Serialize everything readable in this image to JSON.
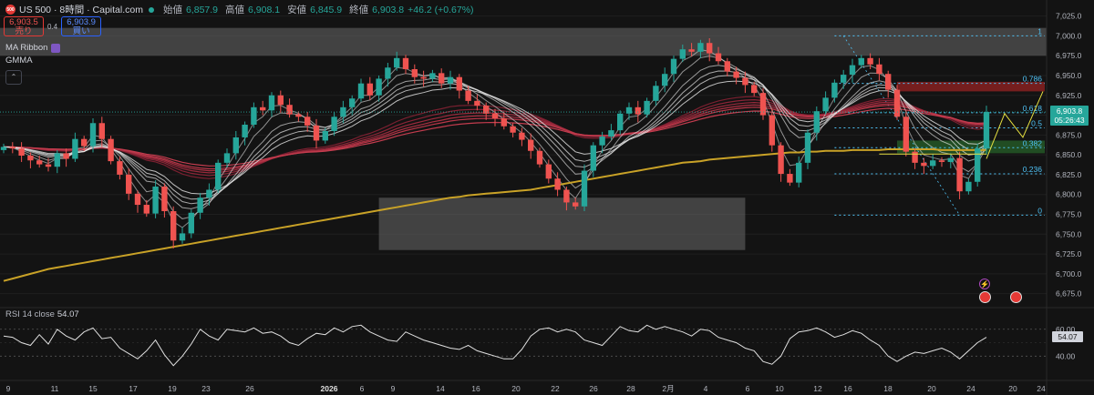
{
  "header": {
    "symbol": "US 500 · 8時間 · Capital.com",
    "logo": "500",
    "open_label": "始値",
    "open": "6,857.9",
    "high_label": "高値",
    "high": "6,908.1",
    "low_label": "安値",
    "low": "6,845.9",
    "close_label": "終値",
    "close": "6,903.8",
    "change": "+46.2 (+0.67%)"
  },
  "trade": {
    "sell_price": "6,903.5",
    "sell_label": "売り",
    "spread": "0.4",
    "buy_price": "6,903.9",
    "buy_label": "買い"
  },
  "indicators": {
    "ma_ribbon": "MA Ribbon",
    "gmma": "GMMA",
    "collapse_icon": "chevron-up-icon"
  },
  "price_badge": {
    "price": "6,903.8",
    "countdown": "05:26:43"
  },
  "rsi": {
    "label": "RSI 14 close",
    "value": "54.07",
    "levels": [
      "60.00",
      "40.00"
    ],
    "badge": "54.07"
  },
  "events": [
    "flash-icon",
    "us-flag-icon",
    "us-flag-icon"
  ],
  "colors": {
    "up": "#26a69a",
    "down": "#ef5350",
    "ma200": "#c9a227",
    "fib": "#4fc3f7",
    "grid": "#1f1f1f"
  },
  "chart_data": {
    "type": "candlestick",
    "symbol": "US 500",
    "timeframe": "8時間",
    "y_ticks": [
      "7,025.0",
      "7,000.0",
      "6,975.0",
      "6,950.0",
      "6,925.0",
      "6,900.0",
      "6,875.0",
      "6,850.0",
      "6,825.0",
      "6,800.0",
      "6,775.0",
      "6,750.0",
      "6,725.0",
      "6,700.0",
      "6,675.0"
    ],
    "ylim": [
      6662,
      7036
    ],
    "x_ticks": [
      "9",
      "11",
      "15",
      "17",
      "19",
      "23",
      "26",
      "2026",
      "6",
      "9",
      "14",
      "16",
      "20",
      "22",
      "26",
      "28",
      "2月",
      "4",
      "6",
      "10",
      "12",
      "16",
      "18",
      "20",
      "24"
    ],
    "fib_levels": [
      {
        "label": "1",
        "price": 7000
      },
      {
        "label": "0.786",
        "price": 6940
      },
      {
        "label": "0.618",
        "price": 6903
      },
      {
        "label": "0.5",
        "price": 6884
      },
      {
        "label": "0.382",
        "price": 6859
      },
      {
        "label": "0.236",
        "price": 6826
      },
      {
        "label": "0",
        "price": 6774
      }
    ],
    "zones": [
      {
        "from": 6975,
        "to": 7010
      },
      {
        "from": 6730,
        "to": 6796
      }
    ],
    "close_path": [
      6860,
      6858,
      6849,
      6843,
      6838,
      6835,
      6852,
      6845,
      6870,
      6861,
      6890,
      6870,
      6842,
      6825,
      6801,
      6787,
      6776,
      6810,
      6779,
      6742,
      6751,
      6777,
      6796,
      6806,
      6840,
      6852,
      6872,
      6888,
      6910,
      6906,
      6925,
      6913,
      6901,
      6898,
      6887,
      6868,
      6880,
      6898,
      6910,
      6921,
      6940,
      6925,
      6946,
      6960,
      6972,
      6958,
      6948,
      6946,
      6953,
      6940,
      6948,
      6931,
      6918,
      6912,
      6902,
      6896,
      6886,
      6878,
      6869,
      6855,
      6838,
      6820,
      6806,
      6790,
      6785,
      6830,
      6862,
      6873,
      6881,
      6902,
      6910,
      6901,
      6918,
      6937,
      6952,
      6971,
      6983,
      6980,
      6991,
      6978,
      6968,
      6955,
      6947,
      6938,
      6928,
      6900,
      6862,
      6826,
      6815,
      6840,
      6878,
      6905,
      6922,
      6941,
      6951,
      6963,
      6972,
      6964,
      6952,
      6932,
      6898,
      6854,
      6840,
      6836,
      6843,
      6841,
      6846,
      6804,
      6816,
      6858,
      6904
    ],
    "ma200_path": [
      6691,
      6694,
      6697,
      6700,
      6703,
      6706,
      6708,
      6710,
      6712,
      6714,
      6716,
      6718,
      6720,
      6722,
      6724,
      6726,
      6728,
      6730,
      6732,
      6734,
      6736,
      6738,
      6740,
      6742,
      6744,
      6746,
      6748,
      6750,
      6752,
      6754,
      6756,
      6758,
      6760,
      6762,
      6764,
      6766,
      6768,
      6770,
      6772,
      6774,
      6776,
      6778,
      6780,
      6782,
      6784,
      6786,
      6788,
      6790,
      6792,
      6794,
      6796,
      6797,
      6799,
      6800,
      6801,
      6802,
      6803,
      6804,
      6805,
      6806,
      6808,
      6810,
      6812,
      6814,
      6816,
      6818,
      6820,
      6822,
      6824,
      6826,
      6828,
      6830,
      6832,
      6834,
      6836,
      6838,
      6840,
      6841,
      6842,
      6844,
      6845,
      6846,
      6847,
      6848,
      6849,
      6850,
      6851,
      6852,
      6853,
      6853,
      6854,
      6854,
      6855,
      6855,
      6855,
      6856,
      6856,
      6856,
      6856,
      6857,
      6857,
      6857,
      6857,
      6857,
      6857,
      6856,
      6856,
      6856,
      6856,
      6856,
      6856
    ],
    "rsi_ylim": [
      26,
      70
    ],
    "rsi_path": [
      55,
      54,
      50,
      48,
      56,
      49,
      60,
      55,
      52,
      58,
      61,
      53,
      54,
      46,
      42,
      38,
      44,
      52,
      41,
      33,
      40,
      49,
      60,
      55,
      52,
      60,
      59,
      58,
      61,
      57,
      58,
      55,
      50,
      48,
      53,
      57,
      56,
      61,
      58,
      62,
      63,
      58,
      55,
      52,
      51,
      58,
      55,
      52,
      50,
      48,
      46,
      45,
      48,
      44,
      42,
      40,
      38,
      38,
      45,
      55,
      60,
      61,
      58,
      60,
      58,
      52,
      50,
      48,
      55,
      62,
      59,
      58,
      63,
      60,
      62,
      60,
      58,
      55,
      60,
      59,
      54,
      52,
      50,
      46,
      44,
      36,
      34,
      40,
      53,
      58,
      59,
      61,
      58,
      54,
      56,
      59,
      57,
      52,
      48,
      40,
      36,
      40,
      43,
      42,
      44,
      46,
      43,
      38,
      44,
      50,
      54
    ]
  }
}
